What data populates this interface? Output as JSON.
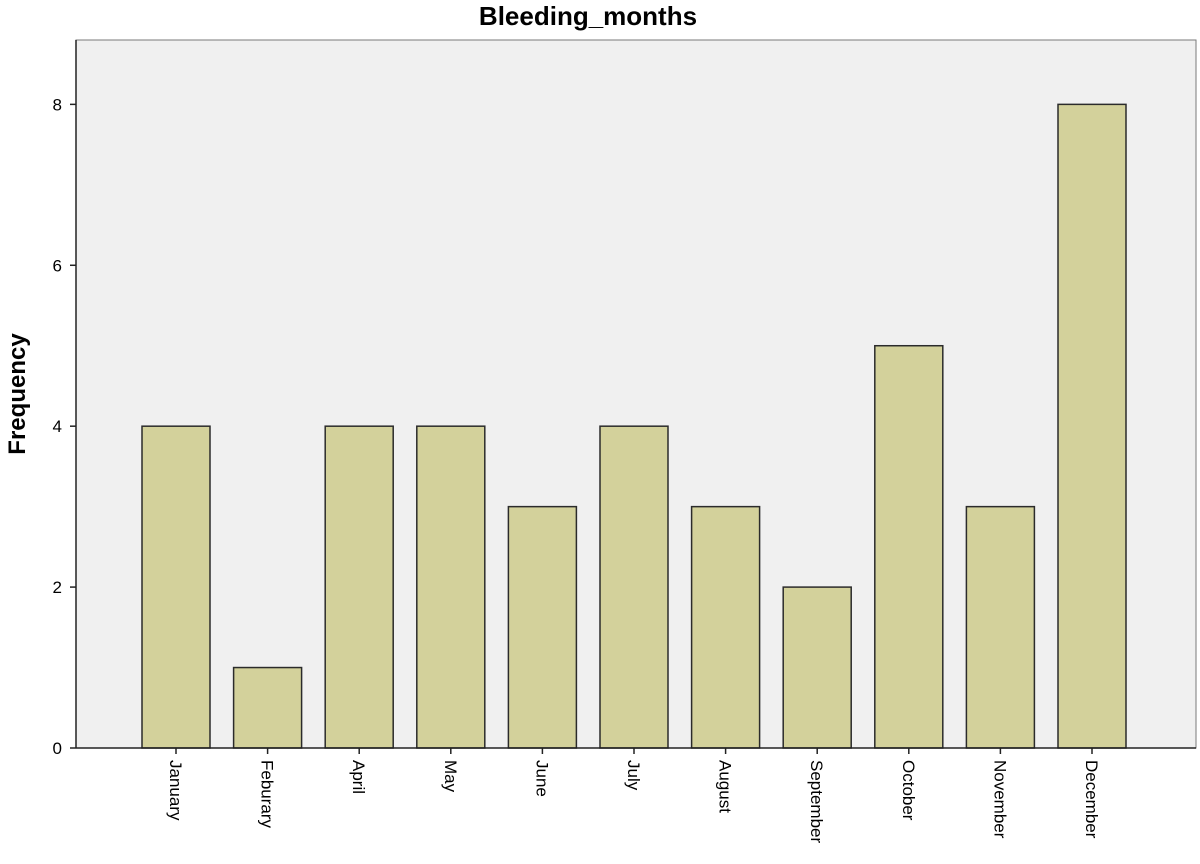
{
  "chart_data": {
    "type": "bar",
    "title": "Bleeding_months",
    "xlabel": "",
    "ylabel": "Frequency",
    "categories": [
      "January",
      "Feburary",
      "April",
      "May",
      "June",
      "July",
      "August",
      "September",
      "October",
      "November",
      "December"
    ],
    "values": [
      4,
      1,
      4,
      4,
      3,
      4,
      3,
      2,
      5,
      3,
      8
    ],
    "ylim": [
      0,
      8.8
    ],
    "yticks": [
      0,
      2,
      4,
      6,
      8
    ],
    "grid": false,
    "legend": "none",
    "colors": {
      "bar_fill": "#d3d19b",
      "bar_stroke": "#2b2b2b",
      "plot_background": "#f0f0f0",
      "axis": "#222222"
    }
  }
}
